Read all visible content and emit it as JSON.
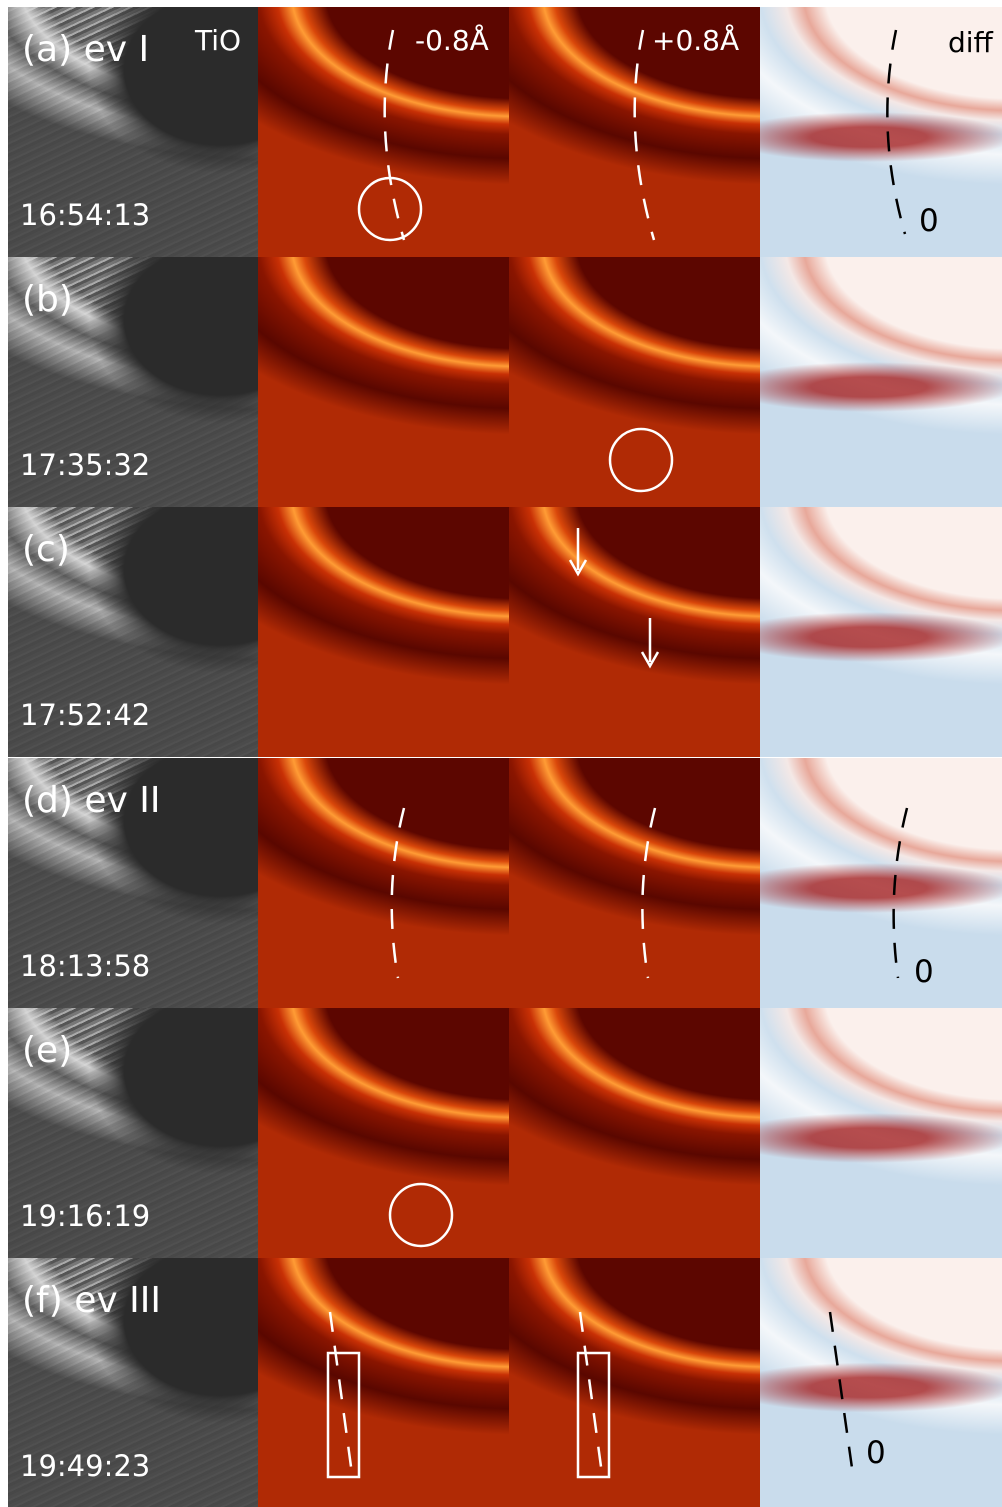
{
  "columns": [
    "TiO",
    "-0.8Å",
    "+0.8Å",
    "diff"
  ],
  "rows": [
    {
      "label": "(a) ev I",
      "time": "16:54:13",
      "diff_label": "0"
    },
    {
      "label": "(b)",
      "time": "17:35:32"
    },
    {
      "label": "(c)",
      "time": "17:52:42"
    },
    {
      "label": "(d) ev II",
      "time": "18:13:58",
      "diff_label": "0"
    },
    {
      "label": "(e)",
      "time": "19:16:19"
    },
    {
      "label": "(f) ev III",
      "time": "19:49:23",
      "diff_label": "0"
    }
  ]
}
